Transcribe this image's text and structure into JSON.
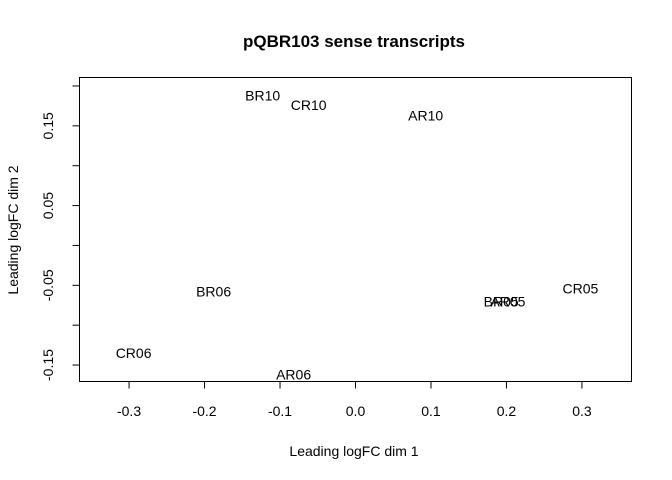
{
  "chart_data": {
    "type": "scatter",
    "title": "pQBR103 sense transcripts",
    "xlabel": "Leading logFC dim 1",
    "ylabel": "Leading logFC dim 2",
    "xlim": [
      -0.365,
      0.365
    ],
    "ylim": [
      -0.17,
      0.21
    ],
    "xticks": [
      -0.3,
      -0.2,
      -0.1,
      0.0,
      0.1,
      0.2,
      0.3
    ],
    "xtick_labels": [
      "-0.3",
      "-0.2",
      "-0.1",
      "0.0",
      "0.1",
      "0.2",
      "0.3"
    ],
    "yticks": [
      -0.15,
      -0.1,
      -0.05,
      0.0,
      0.05,
      0.1,
      0.15,
      0.2
    ],
    "ytick_labels": [
      "-0.15",
      "",
      "-0.05",
      "",
      "0.05",
      "",
      "0.15",
      ""
    ],
    "grid": false,
    "points": [
      {
        "label": "BR10",
        "x": -0.123,
        "y": 0.188
      },
      {
        "label": "CR10",
        "x": -0.062,
        "y": 0.176
      },
      {
        "label": "AR10",
        "x": 0.093,
        "y": 0.163
      },
      {
        "label": "BR06",
        "x": -0.188,
        "y": -0.058
      },
      {
        "label": "CR06",
        "x": -0.294,
        "y": -0.135
      },
      {
        "label": "AR06",
        "x": -0.082,
        "y": -0.162
      },
      {
        "label": "BR05",
        "x": 0.193,
        "y": -0.07
      },
      {
        "label": "AR05",
        "x": 0.202,
        "y": -0.07
      },
      {
        "label": "CR05",
        "x": 0.298,
        "y": -0.054
      }
    ]
  }
}
